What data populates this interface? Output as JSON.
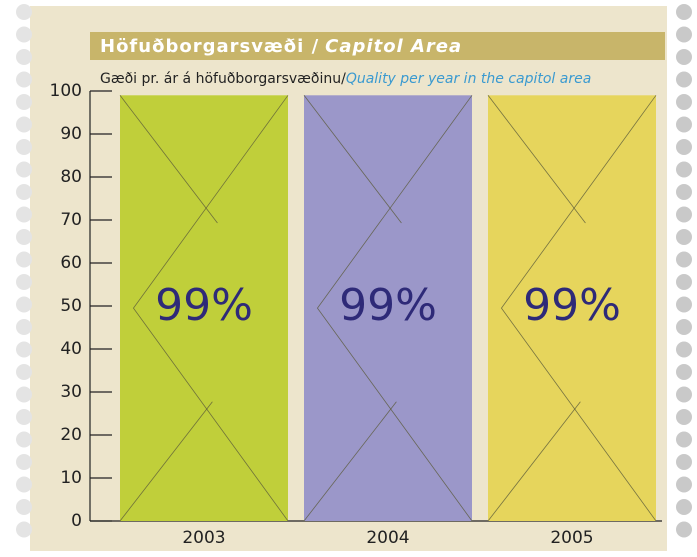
{
  "chart_data": {
    "type": "bar",
    "title": "Höfuðborgarsvæði /",
    "title_en": "Capitol Area",
    "subtitle": "Gæði pr. ár á höfuðborgarsvæðinu/",
    "subtitle_en": "Quality per year in the capitol area",
    "categories": [
      "2003",
      "2004",
      "2005"
    ],
    "values": [
      99,
      99,
      99
    ],
    "value_labels": [
      "99%",
      "99%",
      "99%"
    ],
    "colors": [
      "#c0cf3a",
      "#9b97c9",
      "#e6d55c"
    ],
    "ylim": [
      0,
      100
    ],
    "yticks": [
      0,
      10,
      20,
      30,
      40,
      50,
      60,
      70,
      80,
      90,
      100
    ]
  }
}
